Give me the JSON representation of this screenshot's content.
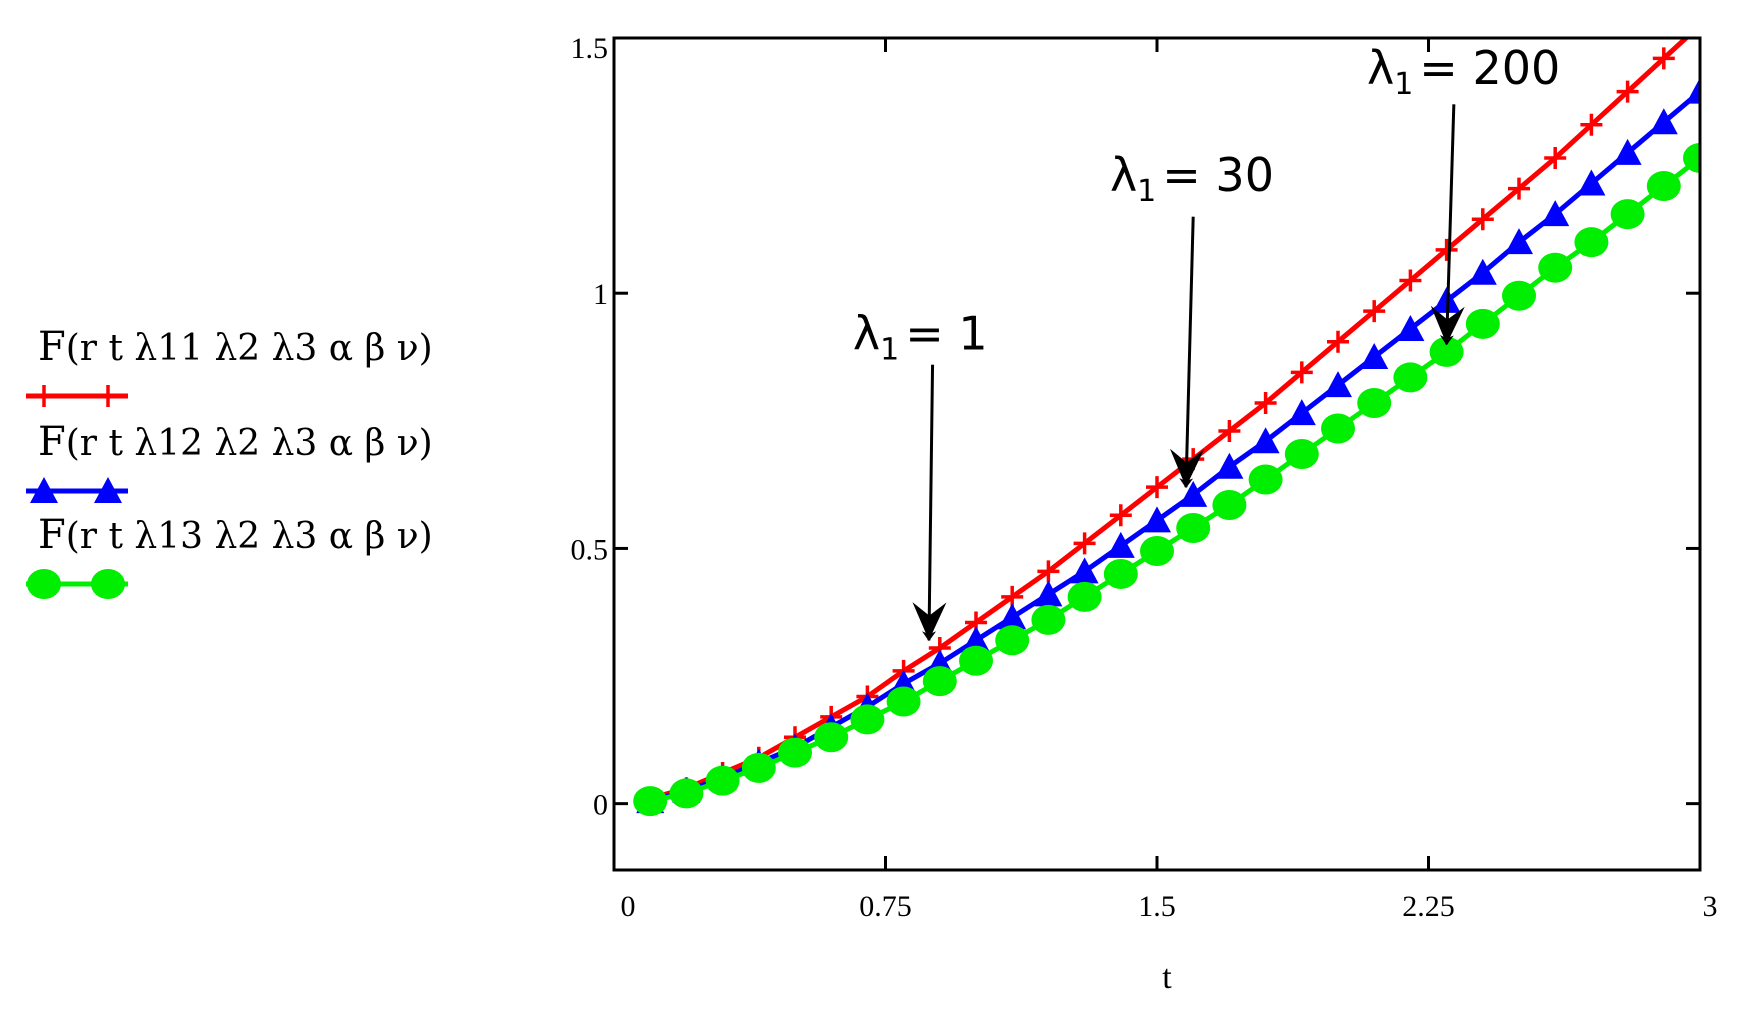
{
  "chart_data": {
    "type": "line",
    "title": "",
    "xlabel": "t",
    "ylabel": "",
    "xlim": [
      0,
      3
    ],
    "ylim": [
      -0.13,
      1.5
    ],
    "x_ticks": [
      0,
      0.75,
      1.5,
      2.25,
      3
    ],
    "x_tick_labels": [
      "0",
      "0.75",
      "1.5",
      "2.25",
      "3"
    ],
    "y_ticks": [
      0,
      0.5,
      1,
      1.5
    ],
    "y_tick_labels": [
      "0",
      "0.5",
      "1",
      "1.5"
    ],
    "grid": false,
    "legend_position": "left",
    "x": [
      0.1,
      0.2,
      0.3,
      0.4,
      0.5,
      0.6,
      0.7,
      0.8,
      0.9,
      1.0,
      1.1,
      1.2,
      1.3,
      1.4,
      1.5,
      1.6,
      1.7,
      1.8,
      1.9,
      2.0,
      2.1,
      2.2,
      2.3,
      2.4,
      2.5,
      2.6,
      2.7,
      2.8,
      2.9,
      3.0
    ],
    "series": [
      {
        "label_main": "F",
        "label_rest": "(r  t  λ11  λ2  λ3  α  β  ν)",
        "color": "#ff0000",
        "marker": "plus",
        "values": [
          0.01,
          0.03,
          0.06,
          0.09,
          0.13,
          0.17,
          0.21,
          0.26,
          0.305,
          0.355,
          0.405,
          0.455,
          0.51,
          0.565,
          0.62,
          0.675,
          0.73,
          0.785,
          0.845,
          0.905,
          0.965,
          1.025,
          1.085,
          1.145,
          1.205,
          1.265,
          1.33,
          1.395,
          1.46,
          1.525
        ]
      },
      {
        "label_main": "F",
        "label_rest": "(r  t  λ12  λ2  λ3  α  β  ν)",
        "color": "#0000ff",
        "marker": "triangle",
        "values": [
          0.005,
          0.025,
          0.05,
          0.08,
          0.11,
          0.15,
          0.19,
          0.235,
          0.275,
          0.32,
          0.365,
          0.41,
          0.455,
          0.505,
          0.555,
          0.605,
          0.66,
          0.71,
          0.765,
          0.82,
          0.875,
          0.93,
          0.985,
          1.04,
          1.1,
          1.155,
          1.215,
          1.275,
          1.335,
          1.395
        ]
      },
      {
        "label_main": "F",
        "label_rest": "(r  t  λ13  λ2  λ3  α  β  ν)",
        "color": "#00ee00",
        "marker": "circle",
        "values": [
          0.005,
          0.02,
          0.045,
          0.07,
          0.1,
          0.13,
          0.165,
          0.2,
          0.24,
          0.28,
          0.32,
          0.36,
          0.405,
          0.45,
          0.495,
          0.54,
          0.585,
          0.635,
          0.685,
          0.735,
          0.785,
          0.835,
          0.885,
          0.94,
          0.995,
          1.05,
          1.1,
          1.155,
          1.21,
          1.265
        ]
      }
    ],
    "annotations": [
      {
        "label": "λ",
        "sub": "1",
        "value": "= 1",
        "text_x": 0.66,
        "text_y": 0.89,
        "tail_x": 0.88,
        "tail_y": 0.86,
        "head_x": 0.87,
        "head_y": 0.32
      },
      {
        "label": "λ",
        "sub": "1",
        "value": "= 30",
        "text_x": 1.37,
        "text_y": 1.2,
        "tail_x": 1.6,
        "tail_y": 1.15,
        "head_x": 1.58,
        "head_y": 0.62
      },
      {
        "label": "λ",
        "sub": "1",
        "value": "= 200",
        "text_x": 2.08,
        "text_y": 1.41,
        "tail_x": 2.32,
        "tail_y": 1.37,
        "head_x": 2.3,
        "head_y": 0.9
      }
    ]
  }
}
